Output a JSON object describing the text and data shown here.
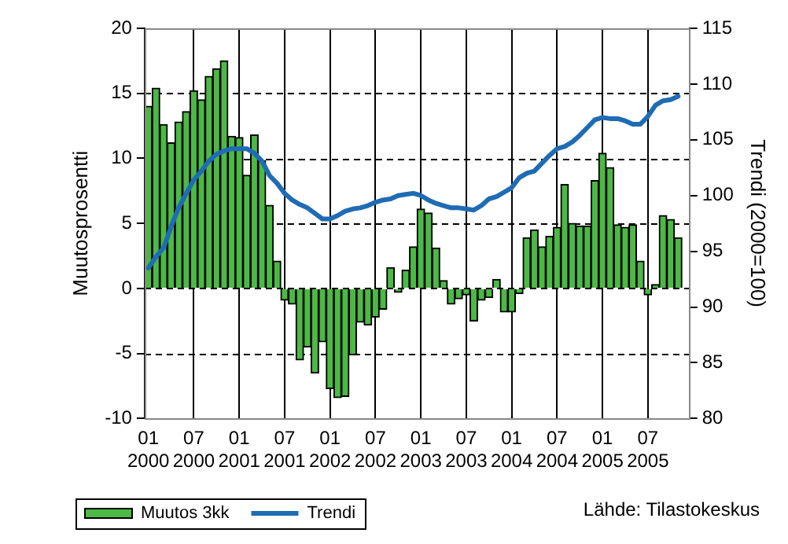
{
  "chart_data": {
    "type": "bar",
    "ylabel": "Muutosprosentti",
    "y2label": "Trendi (2000=100)",
    "categories": [
      "01\n2000",
      null,
      null,
      null,
      null,
      null,
      "07\n2000",
      null,
      null,
      null,
      null,
      null,
      "01\n2001",
      null,
      null,
      null,
      null,
      null,
      "07\n2001",
      null,
      null,
      null,
      null,
      null,
      "01\n2002",
      null,
      null,
      null,
      null,
      null,
      "07\n2002",
      null,
      null,
      null,
      null,
      null,
      "01\n2003",
      null,
      null,
      null,
      null,
      null,
      "07\n2003",
      null,
      null,
      null,
      null,
      null,
      "01\n2004",
      null,
      null,
      null,
      null,
      null,
      "07\n2004",
      null,
      null,
      null,
      null,
      null,
      "01\n2005",
      null,
      null,
      null,
      null,
      null,
      "07\n2005",
      null,
      null,
      null,
      null,
      null
    ],
    "series": [
      {
        "name": "Muutos 3kk",
        "color": "#4cb944",
        "values": [
          14.0,
          15.4,
          12.6,
          11.2,
          12.8,
          13.6,
          15.2,
          14.5,
          16.3,
          16.9,
          17.5,
          11.7,
          11.6,
          8.7,
          11.8,
          9.8,
          6.4,
          2.1,
          -0.9,
          -1.2,
          -5.5,
          -4.5,
          -6.5,
          -4.1,
          -7.7,
          -8.4,
          -8.3,
          -5.1,
          -2.6,
          -2.8,
          -2.2,
          -1.6,
          1.6,
          -0.3,
          1.4,
          3.2,
          6.1,
          5.8,
          3.1,
          0.6,
          -1.2,
          -0.8,
          -0.5,
          -2.5,
          -0.9,
          -0.7,
          0.7,
          -1.8,
          -1.8,
          -0.4,
          3.9,
          4.5,
          3.2,
          4.0,
          4.7,
          8.0,
          5.0,
          4.8,
          4.8,
          8.3,
          10.4,
          9.3,
          4.9,
          4.7,
          4.9,
          2.1,
          -0.5,
          0.3,
          5.6,
          5.3,
          3.9,
          null
        ]
      },
      {
        "name": "Trendi",
        "type": "line",
        "axis": "y2",
        "color": "#1f6cb4",
        "values": [
          93.5,
          94.5,
          95.3,
          97.2,
          98.9,
          100.2,
          101.4,
          102.2,
          103.1,
          103.7,
          104.0,
          104.2,
          104.2,
          104.2,
          103.8,
          103.1,
          101.8,
          101.1,
          100.2,
          99.6,
          99.2,
          98.9,
          98.4,
          97.9,
          97.9,
          98.2,
          98.6,
          98.8,
          98.9,
          99.1,
          99.4,
          99.6,
          99.7,
          100.0,
          100.1,
          100.2,
          100.0,
          99.6,
          99.3,
          99.1,
          98.9,
          98.9,
          98.8,
          98.7,
          99.1,
          99.7,
          99.9,
          100.3,
          100.7,
          101.6,
          102.0,
          102.2,
          102.9,
          103.6,
          104.2,
          104.4,
          104.8,
          105.4,
          106.1,
          106.8,
          107.0,
          106.9,
          106.9,
          106.7,
          106.4,
          106.4,
          107.1,
          108.1,
          108.5,
          108.6,
          108.9,
          null
        ]
      }
    ],
    "ylim": [
      -10,
      20
    ],
    "yticks": [
      -10,
      -5,
      0,
      5,
      10,
      15,
      20
    ],
    "y2lim": [
      80,
      115
    ],
    "y2ticks": [
      80,
      85,
      90,
      95,
      100,
      105,
      110,
      115
    ],
    "grid": true,
    "legend": "bottom left",
    "marker": "none",
    "line_style": "solid",
    "annotations": [
      "Lähde: Tilastokeskus"
    ]
  }
}
